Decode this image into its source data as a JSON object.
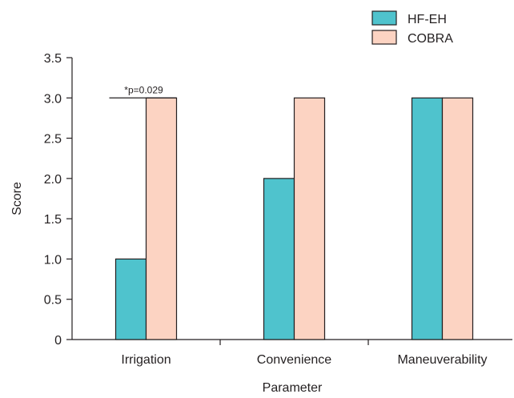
{
  "chart_data": {
    "type": "bar",
    "title": "",
    "xlabel": "Parameter",
    "ylabel": "Score",
    "categories": [
      "Irrigation",
      "Convenience",
      "Maneuverability"
    ],
    "series": [
      {
        "name": "HF-EH",
        "values": [
          1,
          2,
          3
        ],
        "color": "#4fc3cd"
      },
      {
        "name": "COBRA",
        "values": [
          3,
          3,
          3
        ],
        "color": "#fcd3c2"
      }
    ],
    "ylim": [
      0,
      3.5
    ],
    "yticks": [
      "0",
      "0.5",
      "1.0",
      "1.5",
      "2.0",
      "2.5",
      "3.0",
      "3.5"
    ],
    "grid": false,
    "legend": "top-right",
    "annotation": {
      "text": "*p=0.029",
      "category": "Irrigation",
      "value": 3.0
    }
  }
}
